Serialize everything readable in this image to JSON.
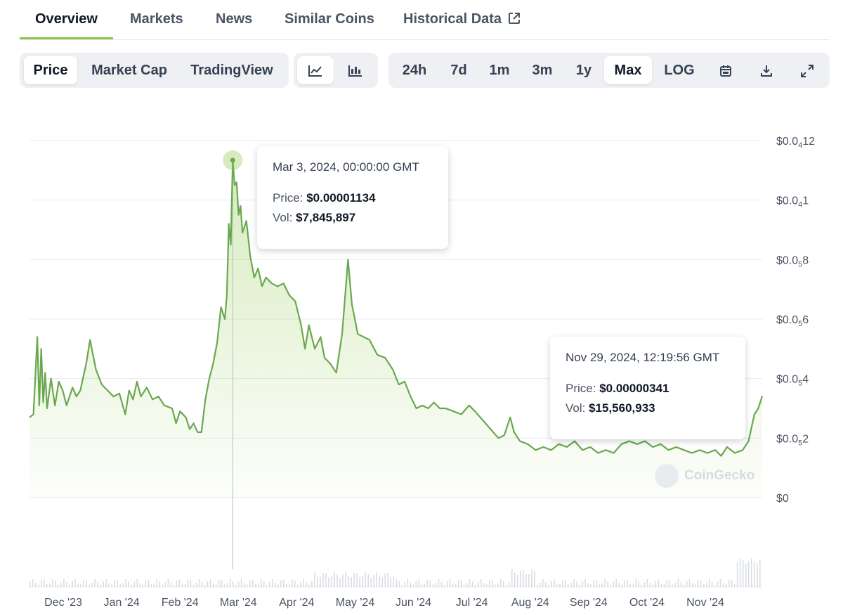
{
  "nav": {
    "tabs": [
      {
        "label": "Overview",
        "active": true
      },
      {
        "label": "Markets"
      },
      {
        "label": "News"
      },
      {
        "label": "Similar Coins"
      },
      {
        "label": "Historical Data",
        "icon": "external-link-icon"
      }
    ]
  },
  "toolbar": {
    "view_tabs": [
      {
        "label": "Price",
        "active": true
      },
      {
        "label": "Market Cap"
      },
      {
        "label": "TradingView"
      }
    ],
    "chart_styles": [
      {
        "icon": "line-chart-icon",
        "active": true
      },
      {
        "icon": "candlestick-icon"
      }
    ],
    "ranges": [
      {
        "label": "24h"
      },
      {
        "label": "7d"
      },
      {
        "label": "1m"
      },
      {
        "label": "3m"
      },
      {
        "label": "1y"
      },
      {
        "label": "Max",
        "active": true
      },
      {
        "label": "LOG"
      }
    ],
    "actions": [
      {
        "icon": "calendar-icon"
      },
      {
        "icon": "download-icon"
      },
      {
        "icon": "expand-icon"
      }
    ]
  },
  "colors": {
    "line": "#6aa84f",
    "fill": "#8dc647",
    "accent": "#8dc647",
    "grid": "#e9ebee",
    "volume": "#d9dde3"
  },
  "tooltips": [
    {
      "date": "Mar 3, 2024, 00:00:00 GMT",
      "price_label": "Price:",
      "price": "$0.00001134",
      "vol_label": "Vol:",
      "vol": "$7,845,897"
    },
    {
      "date": "Nov 29, 2024, 12:19:56 GMT",
      "price_label": "Price:",
      "price": "$0.00000341",
      "vol_label": "Vol:",
      "vol": "$15,560,933"
    }
  ],
  "watermark": "CoinGecko",
  "chart_data": {
    "type": "area",
    "x_tick_labels": [
      "Dec '23",
      "Jan '24",
      "Feb '24",
      "Mar '24",
      "Apr '24",
      "May '24",
      "Jun '24",
      "Jul '24",
      "Aug '24",
      "Sep '24",
      "Oct '24",
      "Nov '24"
    ],
    "y_tick_labels": [
      {
        "value": 0,
        "pre": "$0",
        "sub": "",
        "post": ""
      },
      {
        "value": 2e-06,
        "pre": "$0.0",
        "sub": "5",
        "post": "2"
      },
      {
        "value": 4e-06,
        "pre": "$0.0",
        "sub": "5",
        "post": "4"
      },
      {
        "value": 6e-06,
        "pre": "$0.0",
        "sub": "5",
        "post": "6"
      },
      {
        "value": 8e-06,
        "pre": "$0.0",
        "sub": "5",
        "post": "8"
      },
      {
        "value": 1e-05,
        "pre": "$0.0",
        "sub": "4",
        "post": "1"
      },
      {
        "value": 1.2e-05,
        "pre": "$0.0",
        "sub": "4",
        "post": "12"
      }
    ],
    "ylim": [
      0,
      1.2e-05
    ],
    "xlim": [
      "2023-11-20",
      "2024-11-29"
    ],
    "grid": true,
    "highlight": {
      "date": "2024-03-03",
      "price": 1.134e-05
    },
    "series": [
      {
        "points": [
          [
            "2023-11-20",
            2.7e-06
          ],
          [
            "2023-11-22",
            2.8e-06
          ],
          [
            "2023-11-24",
            5.4e-06
          ],
          [
            "2023-11-25",
            3.1e-06
          ],
          [
            "2023-11-26",
            5e-06
          ],
          [
            "2023-11-27",
            3.2e-06
          ],
          [
            "2023-11-28",
            4.2e-06
          ],
          [
            "2023-11-29",
            3e-06
          ],
          [
            "2023-12-01",
            4e-06
          ],
          [
            "2023-12-03",
            3.1e-06
          ],
          [
            "2023-12-05",
            3.9e-06
          ],
          [
            "2023-12-07",
            3.6e-06
          ],
          [
            "2023-12-09",
            3.1e-06
          ],
          [
            "2023-12-12",
            3.7e-06
          ],
          [
            "2023-12-14",
            3.4e-06
          ],
          [
            "2023-12-16",
            3.6e-06
          ],
          [
            "2023-12-19",
            4.5e-06
          ],
          [
            "2023-12-21",
            5.3e-06
          ],
          [
            "2023-12-24",
            4.3e-06
          ],
          [
            "2023-12-27",
            3.8e-06
          ],
          [
            "2023-12-30",
            3.6e-06
          ],
          [
            "2024-01-02",
            3.4e-06
          ],
          [
            "2024-01-05",
            3.5e-06
          ],
          [
            "2024-01-08",
            2.8e-06
          ],
          [
            "2024-01-10",
            3.6e-06
          ],
          [
            "2024-01-12",
            3.3e-06
          ],
          [
            "2024-01-14",
            3.9e-06
          ],
          [
            "2024-01-16",
            3.4e-06
          ],
          [
            "2024-01-19",
            3.7e-06
          ],
          [
            "2024-01-22",
            3.3e-06
          ],
          [
            "2024-01-25",
            3.4e-06
          ],
          [
            "2024-01-28",
            3.1e-06
          ],
          [
            "2024-02-01",
            3e-06
          ],
          [
            "2024-02-03",
            2.5e-06
          ],
          [
            "2024-02-05",
            2.9e-06
          ],
          [
            "2024-02-08",
            2.7e-06
          ],
          [
            "2024-02-10",
            2.3e-06
          ],
          [
            "2024-02-12",
            2.5e-06
          ],
          [
            "2024-02-14",
            2.2e-06
          ],
          [
            "2024-02-16",
            2.2e-06
          ],
          [
            "2024-02-18",
            3.3e-06
          ],
          [
            "2024-02-20",
            4e-06
          ],
          [
            "2024-02-22",
            4.5e-06
          ],
          [
            "2024-02-24",
            5.2e-06
          ],
          [
            "2024-02-26",
            6.4e-06
          ],
          [
            "2024-02-28",
            6e-06
          ],
          [
            "2024-02-29",
            6.8e-06
          ],
          [
            "2024-03-01",
            9.2e-06
          ],
          [
            "2024-03-02",
            8.5e-06
          ],
          [
            "2024-03-03",
            1.134e-05
          ],
          [
            "2024-03-04",
            1.05e-05
          ],
          [
            "2024-03-05",
            1.06e-05
          ],
          [
            "2024-03-06",
            9.5e-06
          ],
          [
            "2024-03-07",
            9.8e-06
          ],
          [
            "2024-03-08",
            8.9e-06
          ],
          [
            "2024-03-10",
            9.3e-06
          ],
          [
            "2024-03-12",
            8.1e-06
          ],
          [
            "2024-03-14",
            7.4e-06
          ],
          [
            "2024-03-16",
            7.7e-06
          ],
          [
            "2024-03-18",
            7.1e-06
          ],
          [
            "2024-03-20",
            7.4e-06
          ],
          [
            "2024-03-23",
            7.2e-06
          ],
          [
            "2024-03-26",
            7.1e-06
          ],
          [
            "2024-03-29",
            7.2e-06
          ],
          [
            "2024-04-01",
            6.8e-06
          ],
          [
            "2024-04-04",
            6.6e-06
          ],
          [
            "2024-04-07",
            5.8e-06
          ],
          [
            "2024-04-09",
            5e-06
          ],
          [
            "2024-04-11",
            5.8e-06
          ],
          [
            "2024-04-14",
            5e-06
          ],
          [
            "2024-04-17",
            5.4e-06
          ],
          [
            "2024-04-19",
            4.7e-06
          ],
          [
            "2024-04-22",
            4.5e-06
          ],
          [
            "2024-04-25",
            4.2e-06
          ],
          [
            "2024-04-28",
            5.5e-06
          ],
          [
            "2024-05-01",
            8e-06
          ],
          [
            "2024-05-03",
            6.5e-06
          ],
          [
            "2024-05-06",
            5.5e-06
          ],
          [
            "2024-05-09",
            5.4e-06
          ],
          [
            "2024-05-12",
            5.3e-06
          ],
          [
            "2024-05-16",
            4.8e-06
          ],
          [
            "2024-05-20",
            4.7e-06
          ],
          [
            "2024-05-24",
            4.3e-06
          ],
          [
            "2024-05-27",
            3.8e-06
          ],
          [
            "2024-05-30",
            3.9e-06
          ],
          [
            "2024-06-02",
            3.4e-06
          ],
          [
            "2024-06-05",
            3e-06
          ],
          [
            "2024-06-08",
            3.1e-06
          ],
          [
            "2024-06-11",
            3e-06
          ],
          [
            "2024-06-14",
            3.2e-06
          ],
          [
            "2024-06-17",
            3e-06
          ],
          [
            "2024-06-20",
            3e-06
          ],
          [
            "2024-06-24",
            2.9e-06
          ],
          [
            "2024-06-28",
            2.8e-06
          ],
          [
            "2024-07-02",
            3.1e-06
          ],
          [
            "2024-07-05",
            2.9e-06
          ],
          [
            "2024-07-09",
            2.6e-06
          ],
          [
            "2024-07-13",
            2.3e-06
          ],
          [
            "2024-07-17",
            2e-06
          ],
          [
            "2024-07-20",
            2.1e-06
          ],
          [
            "2024-07-23",
            2.7e-06
          ],
          [
            "2024-07-25",
            2.2e-06
          ],
          [
            "2024-07-28",
            1.9e-06
          ],
          [
            "2024-08-01",
            1.8e-06
          ],
          [
            "2024-08-05",
            1.6e-06
          ],
          [
            "2024-08-09",
            1.7e-06
          ],
          [
            "2024-08-13",
            1.6e-06
          ],
          [
            "2024-08-17",
            1.8e-06
          ],
          [
            "2024-08-21",
            1.7e-06
          ],
          [
            "2024-08-25",
            1.9e-06
          ],
          [
            "2024-08-29",
            1.6e-06
          ],
          [
            "2024-09-02",
            1.7e-06
          ],
          [
            "2024-09-06",
            1.5e-06
          ],
          [
            "2024-09-10",
            1.6e-06
          ],
          [
            "2024-09-14",
            1.5e-06
          ],
          [
            "2024-09-18",
            1.8e-06
          ],
          [
            "2024-09-22",
            1.9e-06
          ],
          [
            "2024-09-26",
            1.8e-06
          ],
          [
            "2024-09-30",
            1.9e-06
          ],
          [
            "2024-10-04",
            1.7e-06
          ],
          [
            "2024-10-08",
            1.8e-06
          ],
          [
            "2024-10-12",
            1.6e-06
          ],
          [
            "2024-10-16",
            1.7e-06
          ],
          [
            "2024-10-20",
            1.6e-06
          ],
          [
            "2024-10-24",
            1.5e-06
          ],
          [
            "2024-10-28",
            1.6e-06
          ],
          [
            "2024-11-01",
            1.5e-06
          ],
          [
            "2024-11-05",
            1.6e-06
          ],
          [
            "2024-11-08",
            1.4e-06
          ],
          [
            "2024-11-11",
            1.7e-06
          ],
          [
            "2024-11-15",
            1.5e-06
          ],
          [
            "2024-11-19",
            1.6e-06
          ],
          [
            "2024-11-22",
            1.9e-06
          ],
          [
            "2024-11-25",
            2.8e-06
          ],
          [
            "2024-11-27",
            3e-06
          ],
          [
            "2024-11-29",
            3.41e-06
          ]
        ]
      }
    ]
  }
}
